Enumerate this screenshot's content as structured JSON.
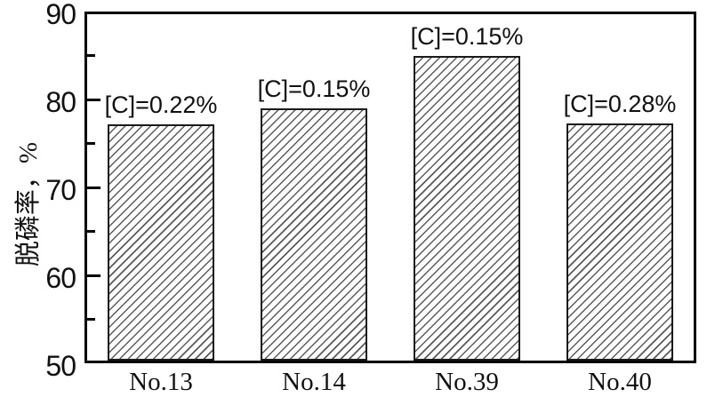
{
  "chart_data": {
    "type": "bar",
    "title": "",
    "categories": [
      "No.13",
      "No.14",
      "No.39",
      "No.40"
    ],
    "values": [
      77.2,
      79,
      84.9,
      77.3
    ],
    "bar_labels": [
      "[C]=0.22%",
      "[C]=0.15%",
      "[C]=0.15%",
      "[C]=0.28%"
    ],
    "xlabel": "",
    "ylabel": "脱磷率，%",
    "ylim": [
      50,
      90
    ],
    "yticks": [
      50,
      60,
      70,
      80,
      90
    ],
    "yticks_minor": [
      55,
      65,
      75,
      85
    ],
    "grid": false,
    "legend_position": "none",
    "bar_style": {
      "fill": "#ffffff",
      "hatch": "diagonal-forward",
      "hatch_color": "#5a5a5a",
      "border_color": "#1a1a1a"
    },
    "axis_color": "#000000",
    "text_color": "#111111",
    "background": "#ffffff"
  }
}
